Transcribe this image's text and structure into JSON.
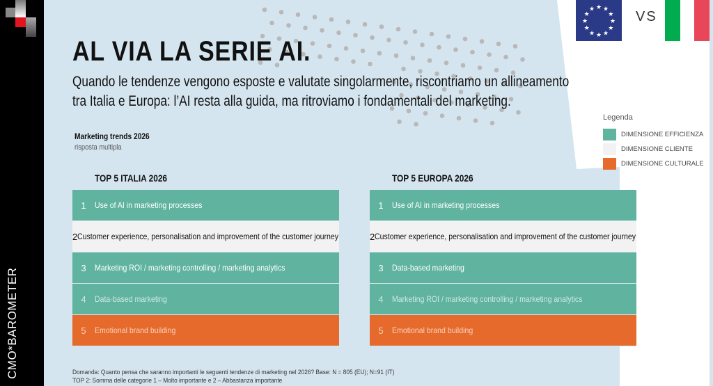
{
  "brand": "CMO*BAROMETER",
  "title": "AL VIA LA SERIE AI.",
  "subtitle": "Quando le tendenze vengono esposte e valutate singolarmente, riscontriamo un allineamento tra Italia e Europa: l’AI resta alla guida, ma ritroviamo i fondamentali del marketing.",
  "chart_label": "Marketing trends 2026",
  "chart_sublabel": "risposta multipla",
  "flags": {
    "left": "EU",
    "vs": "VS",
    "right": "IT"
  },
  "colors": {
    "efficienza": "#5fb39f",
    "cliente": "#f2f2f2",
    "culturale": "#e56a2c",
    "background": "#d5e5ef"
  },
  "legend": {
    "title": "Legenda",
    "items": [
      {
        "label": "DIMENSIONE EFFICIENZA",
        "type": "eff"
      },
      {
        "label": "DIMENSIONE CLIENTE",
        "type": "cli"
      },
      {
        "label": "DIMENSIONE CULTURALE",
        "type": "cul"
      }
    ]
  },
  "italia": {
    "title": "TOP 5 ITALIA 2026",
    "rows": [
      {
        "rank": "1",
        "label": "Use of AI in marketing processes",
        "type": "eff"
      },
      {
        "rank": "2",
        "label": "Customer experience, personalisation and improvement of the customer journey",
        "type": "cli"
      },
      {
        "rank": "3",
        "label": "Marketing ROI / marketing controlling / marketing analytics",
        "type": "eff"
      },
      {
        "rank": "4",
        "label": "Data-based marketing",
        "type": "eff dim"
      },
      {
        "rank": "5",
        "label": "Emotional brand building",
        "type": "cul"
      }
    ]
  },
  "europa": {
    "title": "TOP 5 EUROPA 2026",
    "rows": [
      {
        "rank": "1",
        "label": "Use of AI in marketing processes",
        "type": "eff"
      },
      {
        "rank": "2",
        "label": "Customer experience, personalisation and improvement of the customer journey",
        "type": "cli"
      },
      {
        "rank": "3",
        "label": "Data-based marketing",
        "type": "eff"
      },
      {
        "rank": "4",
        "label": "Marketing ROI / marketing controlling / marketing analytics",
        "type": "eff dim"
      },
      {
        "rank": "5",
        "label": "Emotional brand building",
        "type": "cul"
      }
    ]
  },
  "footnote": [
    "Domanda: Quanto pensa che saranno importanti le seguenti tendenze di marketing nel 2026? Base: N = 805 (EU); N=91 (IT)",
    "TOP 2: Somma delle categorie 1 – Molto importante e 2 – Abbastanza importante"
  ]
}
